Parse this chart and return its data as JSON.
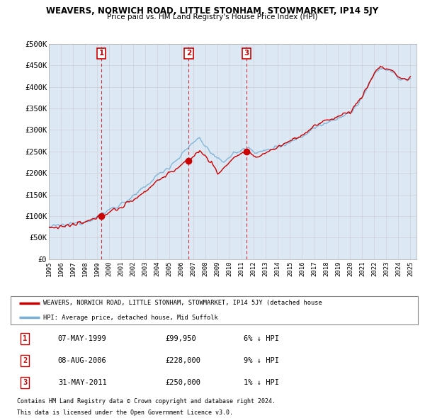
{
  "title": "WEAVERS, NORWICH ROAD, LITTLE STONHAM, STOWMARKET, IP14 5JY",
  "subtitle": "Price paid vs. HM Land Registry's House Price Index (HPI)",
  "ylim": [
    0,
    500000
  ],
  "yticks": [
    0,
    50000,
    100000,
    150000,
    200000,
    250000,
    300000,
    350000,
    400000,
    450000,
    500000
  ],
  "ytick_labels": [
    "£0",
    "£50K",
    "£100K",
    "£150K",
    "£200K",
    "£250K",
    "£300K",
    "£350K",
    "£400K",
    "£450K",
    "£500K"
  ],
  "xlim_start": 1995.0,
  "xlim_end": 2025.5,
  "sales": [
    {
      "num": 1,
      "year": 1999.35,
      "price": 99950,
      "label": "07-MAY-1999",
      "price_str": "£99,950",
      "hpi_rel": "6% ↓ HPI"
    },
    {
      "num": 2,
      "year": 2006.6,
      "price": 228000,
      "label": "08-AUG-2006",
      "price_str": "£228,000",
      "hpi_rel": "9% ↓ HPI"
    },
    {
      "num": 3,
      "year": 2011.4,
      "price": 250000,
      "label": "31-MAY-2011",
      "price_str": "£250,000",
      "hpi_rel": "1% ↓ HPI"
    }
  ],
  "line_color_red": "#cc0000",
  "line_color_blue": "#7ab0d4",
  "marker_color_red": "#cc0000",
  "grid_color": "#cccccc",
  "chart_bg": "#dce9f5",
  "legend_label_red": "WEAVERS, NORWICH ROAD, LITTLE STONHAM, STOWMARKET, IP14 5JY (detached house",
  "legend_label_blue": "HPI: Average price, detached house, Mid Suffolk",
  "footer1": "Contains HM Land Registry data © Crown copyright and database right 2024.",
  "footer2": "This data is licensed under the Open Government Licence v3.0."
}
